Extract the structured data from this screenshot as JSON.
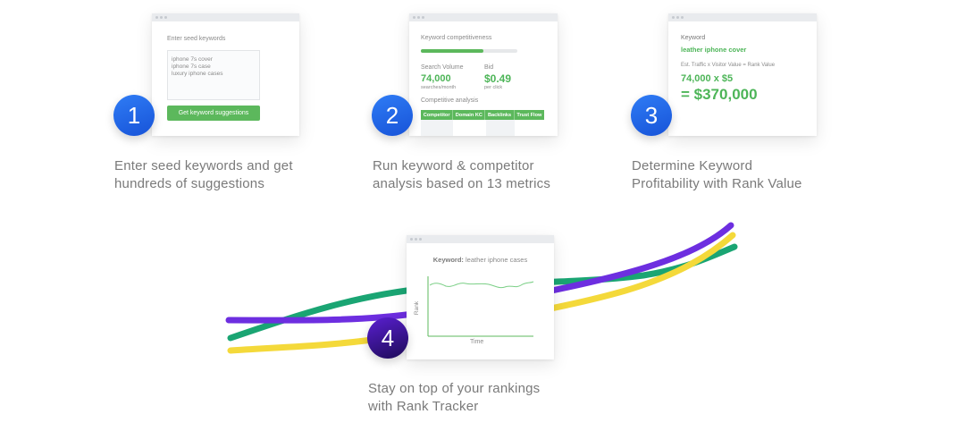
{
  "colors": {
    "blue": "#2468e8",
    "navy": "#3a14a0",
    "green_line": "#1aa573",
    "purple_line": "#6d2ee0",
    "yellow_line": "#f4d93a",
    "accent_green": "#4db558"
  },
  "step1": {
    "number": "1",
    "seed_label": "Enter seed keywords",
    "keywords": [
      "iphone 7s cover",
      "iphone 7s case",
      "luxury iphone cases"
    ],
    "button": "Get keyword suggestions",
    "caption": [
      "Enter seed keywords and get",
      "hundreds of suggestions"
    ]
  },
  "step2": {
    "number": "2",
    "competitiveness_label": "Keyword competitiveness",
    "competitiveness_fraction": 0.65,
    "volume_label": "Search Volume",
    "volume_value": "74,000",
    "volume_sub": "searches/month",
    "bid_label": "Bid",
    "bid_value": "$0.49",
    "bid_sub": "per click",
    "analysis_label": "Competitive analysis",
    "columns": [
      "Competitor",
      "Domain KC",
      "Backlinks",
      "Trust Flow"
    ],
    "caption": [
      "Run keyword & competitor",
      "analysis based on 13 metrics"
    ]
  },
  "step3": {
    "number": "3",
    "keyword_label": "Keyword",
    "keyword_value": "leather iphone cover",
    "formula": "Est. Traffic x Visitor Value = Rank Value",
    "calc": "74,000 x $5",
    "result": "= $370,000",
    "caption": [
      "Determine Keyword",
      "Profitability with Rank Value"
    ]
  },
  "step4": {
    "number": "4",
    "keyword_label": "Keyword:",
    "keyword_value": "leather iphone cases",
    "y_label": "Rank",
    "x_label": "Time",
    "caption": [
      "Stay on top of your rankings",
      "with Rank Tracker"
    ]
  }
}
